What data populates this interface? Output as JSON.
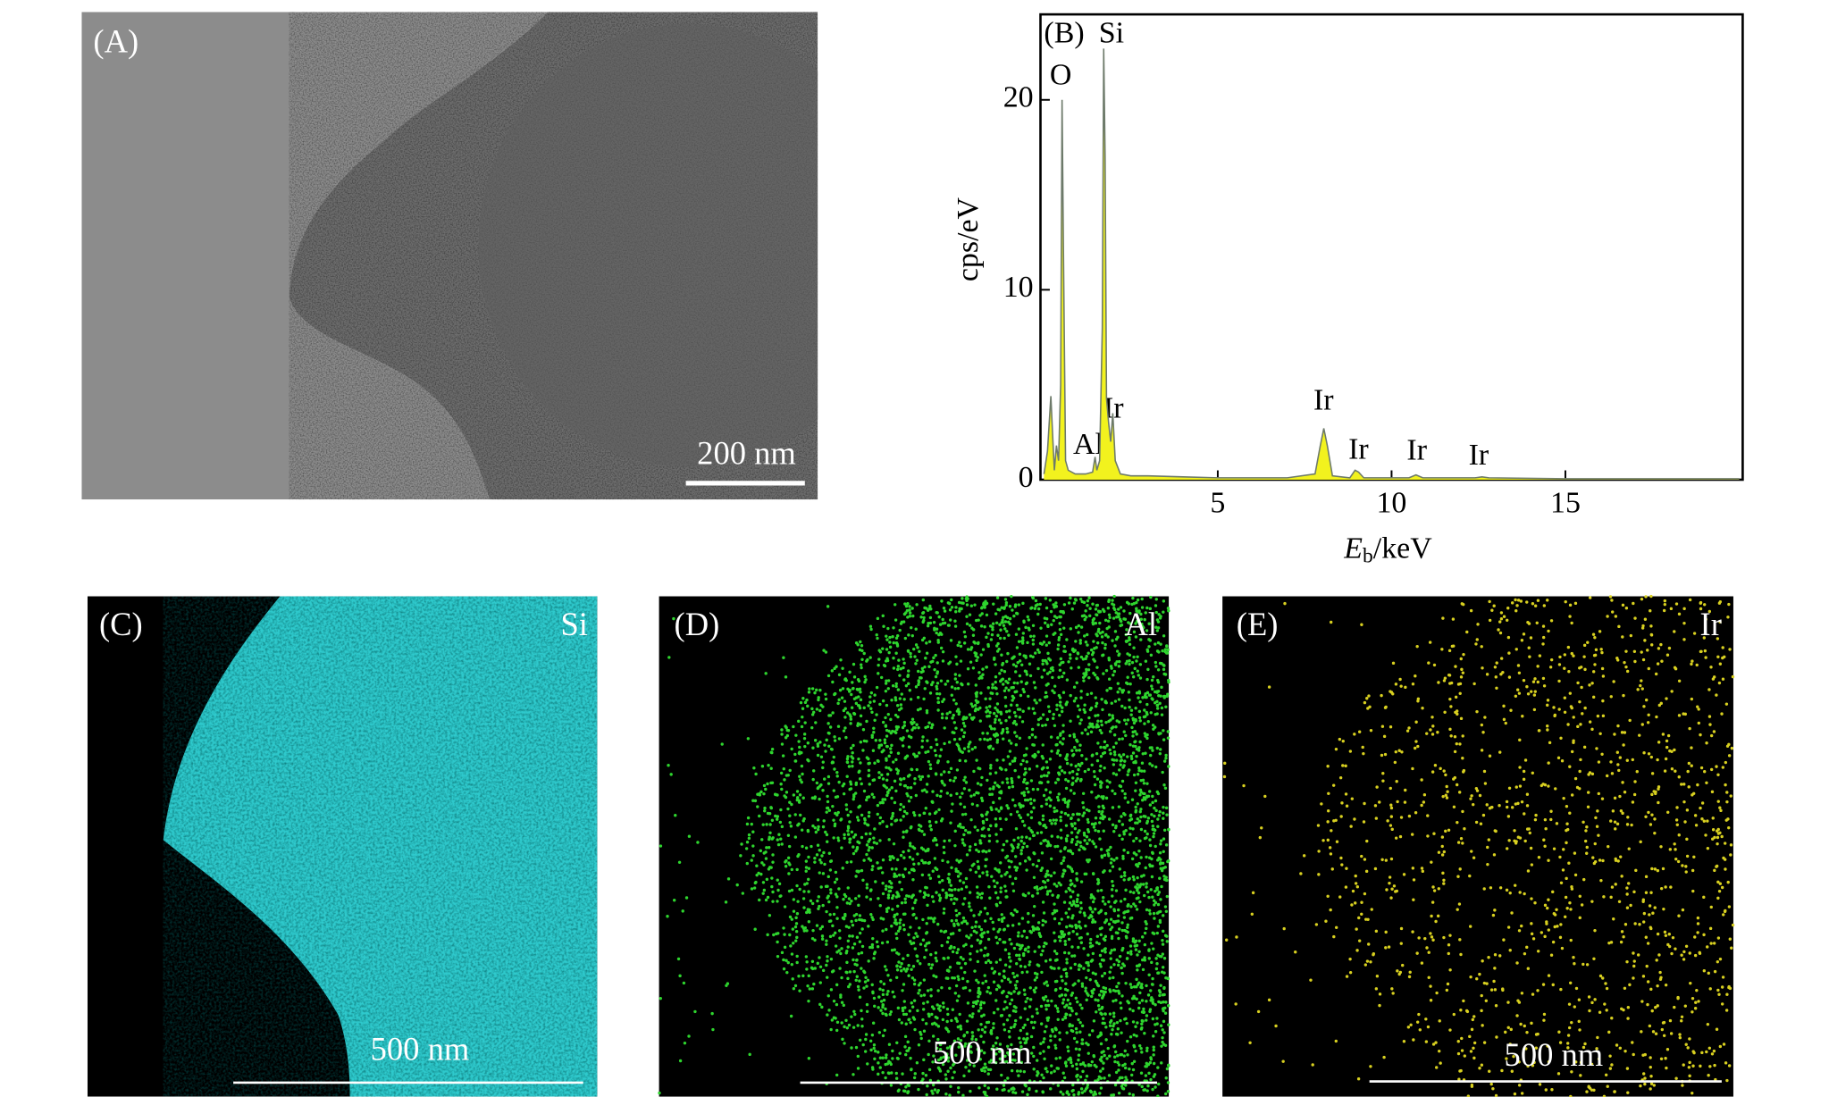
{
  "panels": {
    "a": {
      "label": "(A)",
      "scale_bar": "200 nm"
    },
    "c": {
      "label": "(C)",
      "element": "Si",
      "scale_bar": "500 nm"
    },
    "d": {
      "label": "(D)",
      "element": "Al",
      "scale_bar": "500 nm"
    },
    "e": {
      "label": "(E)",
      "element": "Ir",
      "scale_bar": "500 nm"
    }
  },
  "chart_data": {
    "type": "area",
    "panel_label": "(B)",
    "x_label": {
      "symbol": "E",
      "subscript": "b",
      "unit": "/keV"
    },
    "y_label": "cps/eV",
    "xlim": [
      -0.1,
      20.1
    ],
    "ylim": [
      0,
      24.5
    ],
    "xticks": [
      5,
      10,
      15
    ],
    "yticks": [
      0,
      10,
      20
    ],
    "peak_labels": [
      "Si",
      "O",
      "Al",
      "Ir",
      "Ir",
      "Ir",
      "Ir",
      "Ir"
    ],
    "series": [
      {
        "color": "#f2f21e",
        "x": [
          0.0,
          0.1,
          0.2,
          0.26,
          0.3,
          0.36,
          0.42,
          0.48,
          0.52,
          0.56,
          0.62,
          0.7,
          0.9,
          1.2,
          1.4,
          1.47,
          1.52,
          1.6,
          1.68,
          1.72,
          1.76,
          1.8,
          1.86,
          1.92,
          1.98,
          2.05,
          2.2,
          2.5,
          3,
          4,
          5,
          6,
          7,
          7.8,
          7.95,
          8.05,
          8.15,
          8.3,
          8.8,
          8.95,
          9.05,
          9.2,
          10.5,
          10.7,
          10.9,
          12.4,
          12.6,
          12.8,
          15,
          20
        ],
        "values": [
          0.3,
          1.5,
          4.4,
          2.0,
          0.5,
          1.8,
          1.0,
          5,
          20,
          12,
          1,
          0.5,
          0.3,
          0.3,
          0.4,
          1.2,
          0.5,
          1,
          8,
          22.7,
          17,
          4.3,
          3,
          2,
          3.5,
          1,
          0.3,
          0.2,
          0.2,
          0.15,
          0.1,
          0.1,
          0.1,
          0.3,
          1.8,
          2.7,
          1.8,
          0.2,
          0.1,
          0.5,
          0.4,
          0.1,
          0.1,
          0.25,
          0.1,
          0.1,
          0.15,
          0.1,
          0.05,
          0.05
        ]
      }
    ]
  }
}
